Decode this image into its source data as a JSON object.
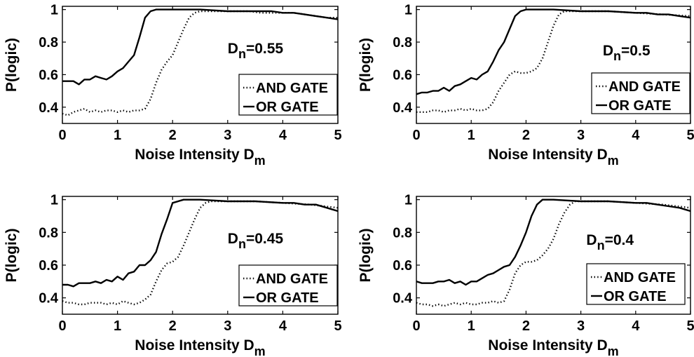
{
  "chart_data": [
    {
      "type": "line",
      "xlabel": "Noise Intensity D",
      "xlabel_sub": "m",
      "ylabel": "P(logic)",
      "annotation": {
        "prefix": "D",
        "sub": "n",
        "value": "=0.55"
      },
      "xlim": [
        0,
        5
      ],
      "ylim": [
        0.3,
        1.02
      ],
      "xticks": [
        "0",
        "1",
        "2",
        "3",
        "4",
        "5"
      ],
      "yticks": [
        "0.4",
        "0.6",
        "0.8",
        "1"
      ],
      "legend": {
        "placement": "lower-right",
        "entries": [
          "AND GATE",
          "OR GATE"
        ]
      },
      "series": [
        {
          "name": "AND GATE",
          "style": "dotted",
          "x": [
            0,
            0.1,
            0.2,
            0.3,
            0.4,
            0.5,
            0.6,
            0.7,
            0.8,
            0.9,
            1.0,
            1.1,
            1.2,
            1.3,
            1.4,
            1.5,
            1.6,
            1.7,
            1.8,
            1.9,
            2.0,
            2.1,
            2.2,
            2.3,
            2.4,
            2.5,
            2.6,
            2.7,
            2.8,
            2.9,
            3.0,
            3.2,
            3.4,
            3.6,
            3.8,
            4.0,
            4.2,
            4.4,
            4.6,
            4.8,
            5.0
          ],
          "y": [
            0.36,
            0.35,
            0.37,
            0.38,
            0.39,
            0.37,
            0.38,
            0.37,
            0.38,
            0.38,
            0.37,
            0.38,
            0.37,
            0.38,
            0.38,
            0.39,
            0.45,
            0.55,
            0.63,
            0.68,
            0.72,
            0.8,
            0.88,
            0.95,
            0.98,
            0.99,
            0.99,
            0.99,
            0.99,
            0.99,
            0.99,
            0.99,
            0.99,
            0.98,
            0.98,
            0.98,
            0.98,
            0.97,
            0.96,
            0.95,
            0.95
          ]
        },
        {
          "name": "OR GATE",
          "style": "solid",
          "x": [
            0,
            0.1,
            0.2,
            0.3,
            0.4,
            0.5,
            0.6,
            0.7,
            0.8,
            0.9,
            1.0,
            1.1,
            1.2,
            1.3,
            1.4,
            1.5,
            1.6,
            1.7,
            1.8,
            1.9,
            2.0,
            2.5,
            3.0,
            3.5,
            3.8,
            4.0,
            4.2,
            4.4,
            4.6,
            4.8,
            5.0
          ],
          "y": [
            0.56,
            0.56,
            0.56,
            0.54,
            0.57,
            0.57,
            0.59,
            0.58,
            0.57,
            0.59,
            0.62,
            0.64,
            0.68,
            0.72,
            0.83,
            0.95,
            0.99,
            1.0,
            1.0,
            1.0,
            1.0,
            1.0,
            0.99,
            0.99,
            0.99,
            0.98,
            0.98,
            0.97,
            0.96,
            0.95,
            0.94
          ]
        }
      ]
    },
    {
      "type": "line",
      "xlabel": "Noise Intensity D",
      "xlabel_sub": "m",
      "ylabel": "P(logic)",
      "annotation": {
        "prefix": "D",
        "sub": "n",
        "value": "=0.5"
      },
      "xlim": [
        0,
        5
      ],
      "ylim": [
        0.3,
        1.02
      ],
      "xticks": [
        "0",
        "1",
        "2",
        "3",
        "4",
        "5"
      ],
      "yticks": [
        "0.4",
        "0.6",
        "0.8",
        "1"
      ],
      "legend": {
        "placement": "lower-right",
        "entries": [
          "AND GATE",
          "OR GATE"
        ]
      },
      "series": [
        {
          "name": "AND GATE",
          "style": "dotted",
          "x": [
            0,
            0.1,
            0.2,
            0.3,
            0.4,
            0.5,
            0.6,
            0.7,
            0.8,
            0.9,
            1.0,
            1.1,
            1.2,
            1.3,
            1.4,
            1.5,
            1.6,
            1.7,
            1.8,
            1.9,
            2.0,
            2.1,
            2.2,
            2.3,
            2.4,
            2.5,
            2.6,
            2.7,
            2.8,
            3.0,
            3.5,
            4.0,
            4.5,
            5.0
          ],
          "y": [
            0.37,
            0.37,
            0.37,
            0.38,
            0.38,
            0.37,
            0.38,
            0.38,
            0.39,
            0.38,
            0.39,
            0.38,
            0.38,
            0.39,
            0.43,
            0.5,
            0.55,
            0.6,
            0.62,
            0.61,
            0.61,
            0.62,
            0.64,
            0.7,
            0.8,
            0.9,
            0.97,
            0.99,
            0.99,
            0.99,
            0.99,
            0.98,
            0.97,
            0.96
          ]
        },
        {
          "name": "OR GATE",
          "style": "solid",
          "x": [
            0,
            0.1,
            0.2,
            0.3,
            0.4,
            0.5,
            0.6,
            0.7,
            0.8,
            0.9,
            1.0,
            1.1,
            1.2,
            1.3,
            1.4,
            1.5,
            1.6,
            1.7,
            1.8,
            1.9,
            2.0,
            2.5,
            3.0,
            3.5,
            4.0,
            4.2,
            4.4,
            4.6,
            4.8,
            5.0
          ],
          "y": [
            0.48,
            0.49,
            0.49,
            0.5,
            0.5,
            0.52,
            0.5,
            0.53,
            0.54,
            0.56,
            0.58,
            0.57,
            0.6,
            0.62,
            0.68,
            0.75,
            0.8,
            0.88,
            0.96,
            0.99,
            1.0,
            1.0,
            0.99,
            0.99,
            0.98,
            0.98,
            0.97,
            0.97,
            0.96,
            0.95
          ]
        }
      ]
    },
    {
      "type": "line",
      "xlabel": "Noise Intensity D",
      "xlabel_sub": "m",
      "ylabel": "P(logic)",
      "annotation": {
        "prefix": "D",
        "sub": "n",
        "value": "=0.45"
      },
      "xlim": [
        0,
        5
      ],
      "ylim": [
        0.3,
        1.02
      ],
      "xticks": [
        "0",
        "1",
        "2",
        "3",
        "4",
        "5"
      ],
      "yticks": [
        "0.4",
        "0.6",
        "0.8",
        "1"
      ],
      "legend": {
        "placement": "lower-right",
        "entries": [
          "AND GATE",
          "OR GATE"
        ]
      },
      "series": [
        {
          "name": "AND GATE",
          "style": "dotted",
          "x": [
            0,
            0.1,
            0.2,
            0.3,
            0.4,
            0.5,
            0.6,
            0.7,
            0.8,
            0.9,
            1.0,
            1.1,
            1.2,
            1.3,
            1.4,
            1.5,
            1.6,
            1.7,
            1.8,
            1.9,
            2.0,
            2.1,
            2.2,
            2.3,
            2.4,
            2.5,
            2.6,
            2.7,
            2.8,
            3.0,
            3.5,
            4.0,
            4.5,
            5.0
          ],
          "y": [
            0.38,
            0.37,
            0.37,
            0.36,
            0.36,
            0.37,
            0.37,
            0.37,
            0.36,
            0.37,
            0.36,
            0.38,
            0.37,
            0.36,
            0.37,
            0.39,
            0.42,
            0.5,
            0.57,
            0.61,
            0.62,
            0.65,
            0.72,
            0.8,
            0.88,
            0.95,
            0.98,
            0.99,
            0.99,
            0.99,
            0.99,
            0.98,
            0.97,
            0.95
          ]
        },
        {
          "name": "OR GATE",
          "style": "solid",
          "x": [
            0,
            0.1,
            0.2,
            0.3,
            0.4,
            0.5,
            0.6,
            0.7,
            0.8,
            0.9,
            1.0,
            1.1,
            1.2,
            1.3,
            1.4,
            1.5,
            1.6,
            1.7,
            1.8,
            1.9,
            2.0,
            2.2,
            2.5,
            3.0,
            3.5,
            4.0,
            4.2,
            4.4,
            4.6,
            4.8,
            5.0
          ],
          "y": [
            0.48,
            0.48,
            0.47,
            0.49,
            0.49,
            0.49,
            0.5,
            0.49,
            0.51,
            0.5,
            0.53,
            0.51,
            0.55,
            0.56,
            0.6,
            0.6,
            0.63,
            0.68,
            0.79,
            0.88,
            0.98,
            1.0,
            1.0,
            0.99,
            0.99,
            0.98,
            0.98,
            0.97,
            0.97,
            0.95,
            0.93
          ]
        }
      ]
    },
    {
      "type": "line",
      "xlabel": "Noise Intensity D",
      "xlabel_sub": "m",
      "ylabel": "P(logic)",
      "annotation": {
        "prefix": "D",
        "sub": "n",
        "value": "=0.4"
      },
      "xlim": [
        0,
        5
      ],
      "ylim": [
        0.3,
        1.02
      ],
      "xticks": [
        "0",
        "1",
        "2",
        "3",
        "4",
        "5"
      ],
      "yticks": [
        "0.4",
        "0.6",
        "0.8",
        "1"
      ],
      "legend": {
        "placement": "lower-right",
        "entries": [
          "AND GATE",
          "OR GATE"
        ]
      },
      "series": [
        {
          "name": "AND GATE",
          "style": "dotted",
          "x": [
            0,
            0.1,
            0.2,
            0.3,
            0.4,
            0.5,
            0.6,
            0.7,
            0.8,
            0.9,
            1.0,
            1.1,
            1.2,
            1.3,
            1.4,
            1.5,
            1.6,
            1.7,
            1.8,
            1.9,
            2.0,
            2.1,
            2.2,
            2.3,
            2.4,
            2.5,
            2.6,
            2.7,
            2.8,
            2.9,
            3.0,
            3.5,
            4.0,
            4.5,
            5.0
          ],
          "y": [
            0.37,
            0.36,
            0.36,
            0.35,
            0.36,
            0.35,
            0.36,
            0.37,
            0.36,
            0.37,
            0.36,
            0.36,
            0.37,
            0.37,
            0.38,
            0.37,
            0.38,
            0.45,
            0.55,
            0.6,
            0.62,
            0.62,
            0.63,
            0.66,
            0.7,
            0.76,
            0.85,
            0.92,
            0.97,
            0.99,
            0.99,
            0.99,
            0.98,
            0.97,
            0.95
          ]
        },
        {
          "name": "OR GATE",
          "style": "solid",
          "x": [
            0,
            0.1,
            0.2,
            0.3,
            0.4,
            0.5,
            0.6,
            0.7,
            0.8,
            0.9,
            1.0,
            1.1,
            1.2,
            1.3,
            1.4,
            1.5,
            1.6,
            1.7,
            1.8,
            1.9,
            2.0,
            2.1,
            2.2,
            2.3,
            2.5,
            3.0,
            3.5,
            4.0,
            4.2,
            4.4,
            4.6,
            4.8,
            5.0
          ],
          "y": [
            0.5,
            0.49,
            0.49,
            0.49,
            0.5,
            0.5,
            0.51,
            0.49,
            0.5,
            0.48,
            0.5,
            0.5,
            0.52,
            0.54,
            0.55,
            0.57,
            0.59,
            0.6,
            0.65,
            0.72,
            0.8,
            0.9,
            0.97,
            1.0,
            1.0,
            0.99,
            0.99,
            0.98,
            0.98,
            0.97,
            0.96,
            0.95,
            0.93
          ]
        }
      ]
    }
  ]
}
